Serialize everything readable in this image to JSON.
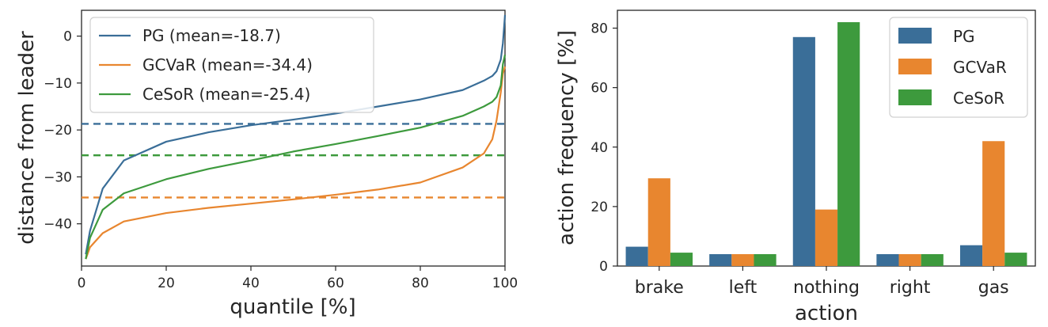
{
  "colors": {
    "PG": "#3a6e98",
    "GCVaR": "#e8862f",
    "CeSoR": "#3d9a3d"
  },
  "chart_data": [
    {
      "type": "line",
      "xlabel": "quantile [%]",
      "ylabel": "distance from leader",
      "xlim": [
        0,
        100
      ],
      "ylim": [
        -49,
        5.5
      ],
      "xticks": [
        0,
        20,
        40,
        60,
        80,
        100
      ],
      "yticks": [
        0,
        -10,
        -20,
        -30,
        -40
      ],
      "grid": false,
      "legend_position": "top-left",
      "x": [
        1,
        2,
        5,
        10,
        20,
        30,
        40,
        50,
        60,
        70,
        80,
        90,
        95,
        97,
        98,
        99,
        99.5,
        100
      ],
      "series": [
        {
          "name": "PG (mean=-18.7)",
          "color_key": "PG",
          "values": [
            -46.5,
            -41.5,
            -32.5,
            -26.5,
            -22.5,
            -20.5,
            -19,
            -17.8,
            -16.5,
            -15,
            -13.5,
            -11.5,
            -9.5,
            -8.5,
            -7.5,
            -5,
            -1.5,
            4.5
          ],
          "mean": -18.7
        },
        {
          "name": "GCVaR (mean=-34.4)",
          "color_key": "GCVaR",
          "values": [
            -47.5,
            -45,
            -42,
            -39.5,
            -37.7,
            -36.6,
            -35.7,
            -34.8,
            -33.8,
            -32.7,
            -31.2,
            -28,
            -25,
            -22,
            -18,
            -12,
            -8,
            -6.5
          ],
          "mean": -34.4
        },
        {
          "name": "CeSoR (mean=-25.4)",
          "color_key": "CeSoR",
          "values": [
            -47.5,
            -43,
            -37,
            -33.5,
            -30.5,
            -28.3,
            -26.5,
            -24.6,
            -23,
            -21.3,
            -19.5,
            -17,
            -15,
            -14,
            -13,
            -10.5,
            -6,
            -4
          ],
          "mean": -25.4
        }
      ]
    },
    {
      "type": "bar",
      "xlabel": "action",
      "ylabel": "action frequency [%]",
      "ylim": [
        0,
        86
      ],
      "yticks": [
        0,
        20,
        40,
        60,
        80
      ],
      "grid": false,
      "legend_position": "top-right",
      "categories": [
        "brake",
        "left",
        "nothing",
        "right",
        "gas"
      ],
      "series": [
        {
          "name": "PG",
          "color_key": "PG",
          "values": [
            6.5,
            4,
            77,
            4,
            7
          ]
        },
        {
          "name": "GCVaR",
          "color_key": "GCVaR",
          "values": [
            29.5,
            4,
            19,
            4,
            42
          ]
        },
        {
          "name": "CeSoR",
          "color_key": "CeSoR",
          "values": [
            4.5,
            4,
            82,
            4,
            4.5
          ]
        }
      ]
    }
  ]
}
